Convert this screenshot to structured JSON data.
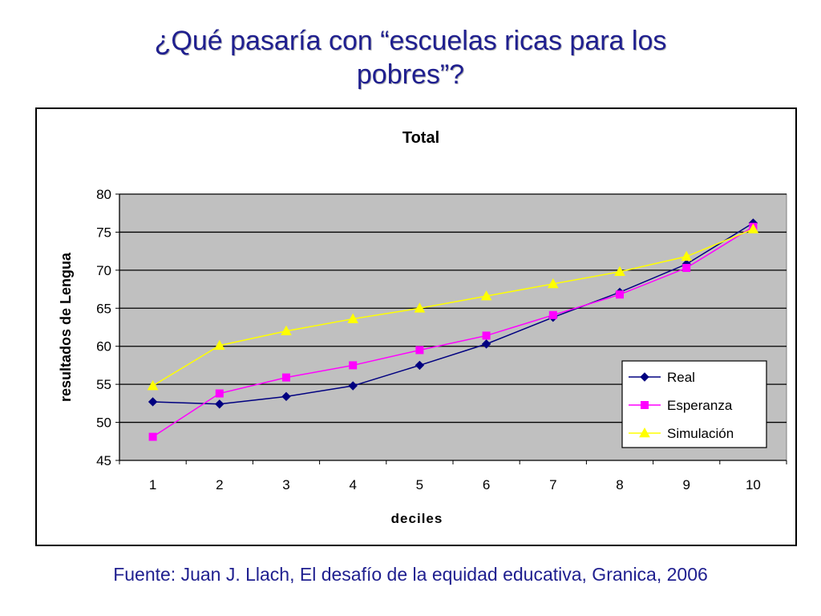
{
  "slide": {
    "title_line1": "¿Qué pasaría con “escuelas ricas para los",
    "title_line2": "pobres”?",
    "source": "Fuente: Juan J. Llach, El desafío de la equidad educativa, Granica, 2006",
    "title_color": "#1f1f8f"
  },
  "chart_data": {
    "type": "line",
    "title": "Total",
    "xlabel": "deciles",
    "ylabel": "resultados de Lengua",
    "categories": [
      "1",
      "2",
      "3",
      "4",
      "5",
      "6",
      "7",
      "8",
      "9",
      "10"
    ],
    "ylim": [
      45,
      80
    ],
    "yticks": [
      45,
      50,
      55,
      60,
      65,
      70,
      75,
      80
    ],
    "grid": true,
    "plot_background": "#c0c0c0",
    "legend_position": "right",
    "series": [
      {
        "name": "Real",
        "color": "#000080",
        "marker": "diamond",
        "values": [
          52.7,
          52.4,
          53.4,
          54.8,
          57.5,
          60.3,
          63.8,
          67.1,
          70.8,
          76.2
        ]
      },
      {
        "name": "Esperanza",
        "color": "#ff00ff",
        "marker": "square",
        "values": [
          48.1,
          53.8,
          55.9,
          57.5,
          59.5,
          61.4,
          64.1,
          66.8,
          70.3,
          75.7
        ]
      },
      {
        "name": "Simulación",
        "color": "#ffff00",
        "marker": "triangle",
        "values": [
          54.8,
          60.1,
          62.0,
          63.6,
          65.0,
          66.6,
          68.2,
          69.8,
          71.8,
          75.4
        ]
      }
    ]
  }
}
